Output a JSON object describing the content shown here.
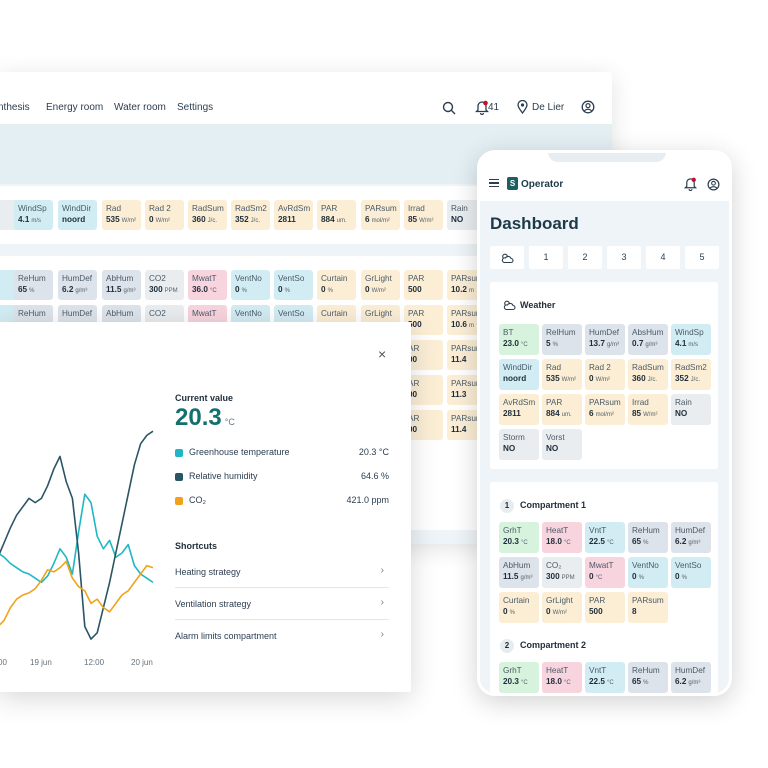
{
  "desktop": {
    "nav": {
      "links": [
        "nthesis",
        "Energy room",
        "Water room",
        "Settings"
      ],
      "notification_count": "41",
      "location": "De Lier"
    },
    "weather_row": [
      {
        "name": "",
        "value": "",
        "unit": "m",
        "color": "gray"
      },
      {
        "name": "WindSp",
        "value": "4.1",
        "unit": "m/s",
        "color": "blue"
      },
      {
        "name": "WindDir",
        "value": "noord",
        "unit": "",
        "color": "blue"
      },
      {
        "name": "Rad",
        "value": "535",
        "unit": "W/m²",
        "color": "yellow"
      },
      {
        "name": "Rad 2",
        "value": "0",
        "unit": "W/m²",
        "color": "yellow"
      },
      {
        "name": "RadSum",
        "value": "360",
        "unit": "J/c.",
        "color": "yellow"
      },
      {
        "name": "RadSm2",
        "value": "352",
        "unit": "J/c.",
        "color": "yellow"
      },
      {
        "name": "AvRdSm",
        "value": "2811",
        "unit": "",
        "color": "yellow"
      },
      {
        "name": "PAR",
        "value": "884",
        "unit": "um.",
        "color": "yellow"
      },
      {
        "name": "PARsum",
        "value": "6",
        "unit": "mol/m²",
        "color": "yellow"
      },
      {
        "name": "Irrad",
        "value": "85",
        "unit": "W/m²",
        "color": "yellow"
      },
      {
        "name": "Rain",
        "value": "NO",
        "unit": "",
        "color": "gray"
      }
    ],
    "comp_row_1": [
      {
        "name": "",
        "value": "",
        "unit": "",
        "color": "blue"
      },
      {
        "name": "ReHum",
        "value": "65",
        "unit": "%",
        "color": "purple"
      },
      {
        "name": "HumDef",
        "value": "6.2",
        "unit": "g/m³",
        "color": "purple"
      },
      {
        "name": "AbHum",
        "value": "11.5",
        "unit": "g/m³",
        "color": "purple"
      },
      {
        "name": "CO2",
        "value": "300",
        "unit": "PPM",
        "color": "gray"
      },
      {
        "name": "MwatT",
        "value": "36.0",
        "unit": "°C",
        "color": "pink"
      },
      {
        "name": "VentNo",
        "value": "0",
        "unit": "%",
        "color": "blue"
      },
      {
        "name": "VentSo",
        "value": "0",
        "unit": "%",
        "color": "blue"
      },
      {
        "name": "Curtain",
        "value": "0",
        "unit": "%",
        "color": "yellow"
      },
      {
        "name": "GrLight",
        "value": "0",
        "unit": "W/m²",
        "color": "yellow"
      },
      {
        "name": "PAR",
        "value": "500",
        "unit": "",
        "color": "yellow"
      },
      {
        "name": "PARsum",
        "value": "10.2",
        "unit": "m",
        "color": "yellow"
      }
    ],
    "comp_row_2": [
      {
        "name": "",
        "value": "",
        "unit": "",
        "color": "blue"
      },
      {
        "name": "ReHum",
        "value": "",
        "unit": "",
        "color": "purple"
      },
      {
        "name": "HumDef",
        "value": "",
        "unit": "",
        "color": "purple"
      },
      {
        "name": "AbHum",
        "value": "",
        "unit": "",
        "color": "purple"
      },
      {
        "name": "CO2",
        "value": "",
        "unit": "",
        "color": "gray"
      },
      {
        "name": "MwatT",
        "value": "",
        "unit": "",
        "color": "pink"
      },
      {
        "name": "VentNo",
        "value": "",
        "unit": "",
        "color": "blue"
      },
      {
        "name": "VentSo",
        "value": "",
        "unit": "",
        "color": "blue"
      },
      {
        "name": "Curtain",
        "value": "",
        "unit": "",
        "color": "yellow"
      },
      {
        "name": "GrLight",
        "value": "",
        "unit": "",
        "color": "yellow"
      },
      {
        "name": "PAR",
        "value": "500",
        "unit": "",
        "color": "yellow"
      },
      {
        "name": "PARsum",
        "value": "10.6",
        "unit": "m",
        "color": "yellow"
      }
    ],
    "partial_rows": [
      {
        "par": "AR",
        "par_val": "00",
        "parsum": "PARsum",
        "parsum_val": "11.4"
      },
      {
        "par": "AR",
        "par_val": "00",
        "parsum": "PARsum",
        "parsum_val": "11.3"
      },
      {
        "par": "AR",
        "par_val": "00",
        "parsum": "PARsum",
        "parsum_val": "11.4"
      }
    ]
  },
  "popup": {
    "close_label": "×",
    "current_value_label": "Current value",
    "current_value": "20.3",
    "current_unit": "°C",
    "legend": [
      {
        "label": "Greenhouse temperature",
        "value": "20.3 °C",
        "color": "#1fb7c4"
      },
      {
        "label": "Relative humidity",
        "value": "64.6 %",
        "color": "#2b5566"
      },
      {
        "label": "CO₂",
        "value": "421.0 ppm",
        "color": "#f0a21b"
      }
    ],
    "shortcuts_title": "Shortcuts",
    "shortcuts": [
      "Heating strategy",
      "Ventilation strategy",
      "Alarm limits compartment"
    ]
  },
  "chart_data": {
    "type": "line",
    "x_ticks": [
      "00",
      "19 jun",
      "12:00",
      "20 jun"
    ],
    "x": [
      0,
      0.04,
      0.08,
      0.12,
      0.16,
      0.2,
      0.24,
      0.28,
      0.32,
      0.36,
      0.4,
      0.44,
      0.48,
      0.52,
      0.56,
      0.6,
      0.64,
      0.68,
      0.72,
      0.76,
      0.8,
      0.84,
      0.88,
      0.92,
      0.96,
      1.0
    ],
    "series": [
      {
        "name": "Greenhouse temperature",
        "color": "#1fb7c4",
        "values": [
          0.4,
          0.38,
          0.35,
          0.33,
          0.31,
          0.3,
          0.28,
          0.26,
          0.29,
          0.35,
          0.42,
          0.38,
          0.3,
          0.5,
          0.68,
          0.64,
          0.48,
          0.42,
          0.46,
          0.38,
          0.4,
          0.44,
          0.34,
          0.3,
          0.28,
          0.26
        ]
      },
      {
        "name": "Relative humidity",
        "color": "#2b5566",
        "values": [
          0.38,
          0.45,
          0.52,
          0.58,
          0.62,
          0.66,
          0.64,
          0.66,
          0.72,
          0.8,
          0.86,
          0.74,
          0.66,
          0.4,
          0.05,
          -0.01,
          0.02,
          0.14,
          0.26,
          0.4,
          0.54,
          0.68,
          0.82,
          0.92,
          0.96,
          0.98
        ]
      },
      {
        "name": "CO₂",
        "color": "#f0a21b",
        "values": [
          0.05,
          0.08,
          0.14,
          0.18,
          0.2,
          0.21,
          0.23,
          0.27,
          0.32,
          0.31,
          0.33,
          0.36,
          0.28,
          0.24,
          0.22,
          0.16,
          0.18,
          0.14,
          0.12,
          0.16,
          0.2,
          0.22,
          0.26,
          0.3,
          0.34,
          0.33
        ]
      }
    ]
  },
  "phone": {
    "app_name": "Operator",
    "logo_letter": "S",
    "title": "Dashboard",
    "tabs": [
      "",
      "1",
      "2",
      "3",
      "4",
      "5"
    ],
    "weather_title": "Weather",
    "weather": [
      {
        "name": "BT",
        "value": "23.0",
        "unit": "°C",
        "color": "green"
      },
      {
        "name": "RelHum",
        "value": "5",
        "unit": "%",
        "color": "purple"
      },
      {
        "name": "HumDef",
        "value": "13.7",
        "unit": "g/m³",
        "color": "purple"
      },
      {
        "name": "AbsHum",
        "value": "0.7",
        "unit": "g/m³",
        "color": "purple"
      },
      {
        "name": "WindSp",
        "value": "4.1",
        "unit": "m/s",
        "color": "blue"
      },
      {
        "name": "WindDir",
        "value": "noord",
        "unit": "",
        "color": "blue"
      },
      {
        "name": "Rad",
        "value": "535",
        "unit": "W/m²",
        "color": "yellow"
      },
      {
        "name": "Rad 2",
        "value": "0",
        "unit": "W/m²",
        "color": "yellow"
      },
      {
        "name": "RadSum",
        "value": "360",
        "unit": "J/c.",
        "color": "yellow"
      },
      {
        "name": "RadSm2",
        "value": "352",
        "unit": "J/c.",
        "color": "yellow"
      },
      {
        "name": "AvRdSm",
        "value": "2811",
        "unit": "",
        "color": "yellow"
      },
      {
        "name": "PAR",
        "value": "884",
        "unit": "um.",
        "color": "yellow"
      },
      {
        "name": "PARsum",
        "value": "6",
        "unit": "mol/m²",
        "color": "yellow"
      },
      {
        "name": "Irrad",
        "value": "85",
        "unit": "W/m²",
        "color": "yellow"
      },
      {
        "name": "Rain",
        "value": "NO",
        "unit": "",
        "color": "gray"
      },
      {
        "name": "Storm",
        "value": "NO",
        "unit": "",
        "color": "gray"
      },
      {
        "name": "Vorst",
        "value": "NO",
        "unit": "",
        "color": "gray"
      }
    ],
    "compartment_1": {
      "number": "1",
      "title": "Compartment 1",
      "chips": [
        {
          "name": "GrhT",
          "value": "20.3",
          "unit": "°C",
          "color": "green"
        },
        {
          "name": "HeatT",
          "value": "18.0",
          "unit": "°C",
          "color": "pink"
        },
        {
          "name": "VntT",
          "value": "22.5",
          "unit": "°C",
          "color": "blue"
        },
        {
          "name": "ReHum",
          "value": "65",
          "unit": "%",
          "color": "purple"
        },
        {
          "name": "HumDef",
          "value": "6.2",
          "unit": "g/m³",
          "color": "purple"
        },
        {
          "name": "AbHum",
          "value": "11.5",
          "unit": "g/m³",
          "color": "purple"
        },
        {
          "name": "CO₂",
          "value": "300",
          "unit": "PPM",
          "color": "gray"
        },
        {
          "name": "MwatT",
          "value": "0",
          "unit": "°C",
          "color": "pink"
        },
        {
          "name": "VentNo",
          "value": "0",
          "unit": "%",
          "color": "blue"
        },
        {
          "name": "VentSo",
          "value": "0",
          "unit": "%",
          "color": "blue"
        },
        {
          "name": "Curtain",
          "value": "0",
          "unit": "%",
          "color": "yellow"
        },
        {
          "name": "GrLight",
          "value": "0",
          "unit": "W/m²",
          "color": "yellow"
        },
        {
          "name": "PAR",
          "value": "500",
          "unit": "",
          "color": "yellow"
        },
        {
          "name": "PARsum",
          "value": "8",
          "unit": "",
          "color": "yellow"
        }
      ]
    },
    "compartment_2": {
      "number": "2",
      "title": "Compartment 2",
      "chips": [
        {
          "name": "GrhT",
          "value": "20.3",
          "unit": "°C",
          "color": "green"
        },
        {
          "name": "HeatT",
          "value": "18.0",
          "unit": "°C",
          "color": "pink"
        },
        {
          "name": "VntT",
          "value": "22.5",
          "unit": "°C",
          "color": "blue"
        },
        {
          "name": "ReHum",
          "value": "65",
          "unit": "%",
          "color": "purple"
        },
        {
          "name": "HumDef",
          "value": "6.2",
          "unit": "g/m³",
          "color": "purple"
        }
      ]
    }
  }
}
